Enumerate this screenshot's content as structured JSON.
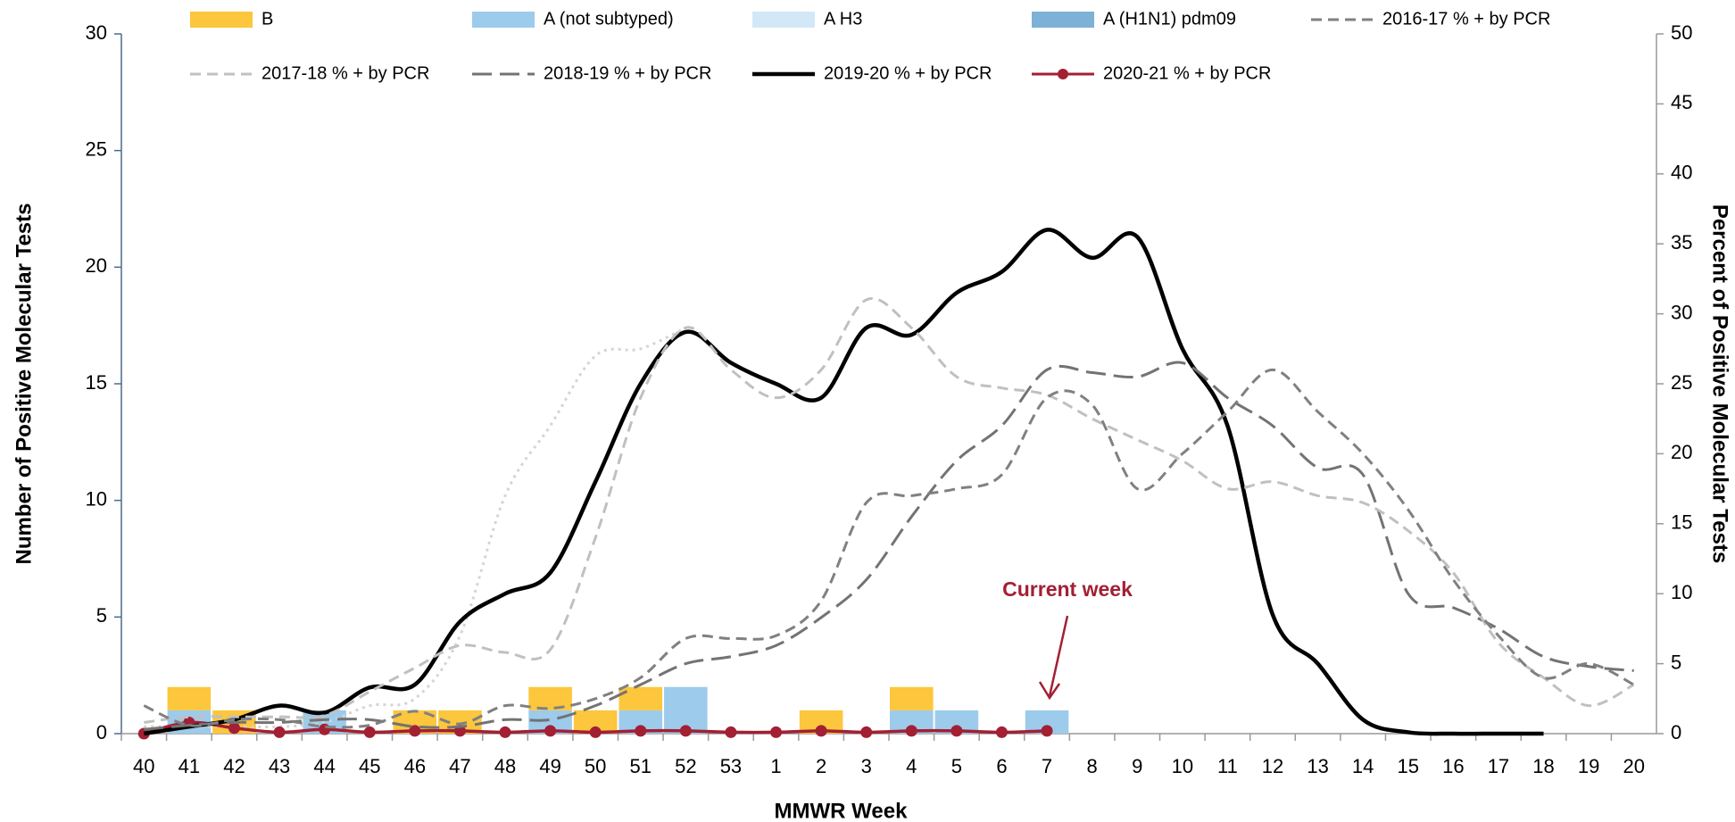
{
  "chart_data": {
    "type": "bar",
    "x_label": "MMWR Week",
    "y_label": "Number of Positive Molecular Tests",
    "y2_label": "Percent of Positive Molecular Tests",
    "annotation": "Current week",
    "categories": [
      "40",
      "41",
      "42",
      "43",
      "44",
      "45",
      "46",
      "47",
      "48",
      "49",
      "50",
      "51",
      "52",
      "53",
      "1",
      "2",
      "3",
      "4",
      "5",
      "6",
      "7",
      "8",
      "9",
      "10",
      "11",
      "12",
      "13",
      "14",
      "15",
      "16",
      "17",
      "18",
      "19",
      "20"
    ],
    "ylim": [
      0,
      30
    ],
    "yticks": [
      0,
      5,
      10,
      15,
      20,
      25,
      30
    ],
    "y2lim": [
      0,
      50
    ],
    "y2ticks": [
      0,
      5,
      10,
      15,
      20,
      25,
      30,
      35,
      40,
      45,
      50
    ],
    "series": [
      {
        "name": "B",
        "type": "bar",
        "color": "#fcc63d",
        "values": [
          0,
          1,
          1,
          0,
          0,
          0,
          1,
          1,
          0,
          1,
          1,
          1,
          0,
          0,
          0,
          1,
          0,
          1,
          0,
          0,
          0,
          0,
          0,
          0,
          0,
          0,
          0,
          0,
          0,
          0,
          0,
          0,
          0,
          0
        ]
      },
      {
        "name": "A (not subtyped)",
        "type": "bar",
        "color": "#9dcbeb",
        "values": [
          0,
          1,
          0,
          0,
          1,
          0,
          0,
          0,
          0,
          1,
          0,
          1,
          2,
          0,
          0,
          0,
          0,
          1,
          1,
          0,
          1,
          0,
          0,
          0,
          0,
          0,
          0,
          0,
          0,
          0,
          0,
          0,
          0,
          0
        ]
      },
      {
        "name": "A H3",
        "type": "bar",
        "color": "#d3e8f7",
        "values": [
          0,
          0,
          0,
          0,
          0,
          0,
          0,
          0,
          0,
          0,
          0,
          0,
          0,
          0,
          0,
          0,
          0,
          0,
          0,
          0,
          0,
          0,
          0,
          0,
          0,
          0,
          0,
          0,
          0,
          0,
          0,
          0,
          0,
          0
        ]
      },
      {
        "name": "A (H1N1) pdm09",
        "type": "bar",
        "color": "#7eb1d6",
        "values": [
          0,
          0,
          0,
          0,
          0,
          0,
          0,
          0,
          0,
          0,
          0,
          0,
          0,
          0,
          0,
          0,
          0,
          0,
          0,
          0,
          0,
          0,
          0,
          0,
          0,
          0,
          0,
          0,
          0,
          0,
          0,
          0,
          0,
          0
        ]
      },
      {
        "name": "2016-17 % + by PCR",
        "type": "line",
        "axis": "y2",
        "color": "#808080",
        "style": "dashed",
        "values": [
          2,
          0.6,
          1,
          1,
          0.5,
          0.6,
          1.6,
          0.7,
          2,
          1.8,
          2.5,
          4,
          6.8,
          6.8,
          7,
          9.5,
          16.5,
          17,
          17.5,
          18.5,
          24,
          23.5,
          17.5,
          20,
          23,
          26,
          23,
          20,
          16,
          11,
          7,
          4,
          5,
          3.5
        ]
      },
      {
        "name": "2017-18 % + by PCR",
        "type": "line",
        "axis": "y2",
        "color": "#c0c0c0",
        "style": "dashed",
        "values": [
          0.8,
          1.2,
          1.2,
          1.2,
          1.3,
          3,
          4.7,
          6.3,
          5.8,
          6,
          14,
          24,
          29,
          26,
          24,
          26,
          31,
          29,
          25.5,
          24.7,
          24.2,
          22.5,
          21,
          19.5,
          17.5,
          18,
          17,
          16.5,
          14.5,
          11.5,
          6.5,
          4,
          2,
          3.5
        ]
      },
      {
        "name": "2018-19 % + by PCR",
        "type": "line",
        "axis": "y2",
        "color": "#737373",
        "style": "long-dashed",
        "values": [
          0.3,
          0.6,
          0.8,
          0.8,
          1,
          1,
          0.5,
          0.5,
          1,
          1,
          2,
          3.5,
          5,
          5.5,
          6.3,
          8.3,
          11,
          15.5,
          19.5,
          22,
          26,
          25.8,
          25.5,
          26.5,
          24,
          22,
          19,
          18.5,
          10,
          9,
          7.5,
          5.5,
          4.8,
          4.5
        ]
      },
      {
        "name": "2019-20 % + by PCR",
        "type": "line",
        "axis": "y2",
        "color": "#000000",
        "style": "solid",
        "values": [
          0,
          0.5,
          1,
          2,
          1.5,
          3.3,
          3.5,
          8,
          10,
          11.5,
          18,
          25,
          28.7,
          26.5,
          25,
          24,
          29,
          28.5,
          31.5,
          33,
          36,
          34,
          35.5,
          27.5,
          22,
          8.5,
          5,
          1,
          0.1,
          0,
          0,
          0,
          null,
          null
        ]
      },
      {
        "name": "2020-21 % + by PCR",
        "type": "line",
        "axis": "y2",
        "color": "#a31f34",
        "style": "solid",
        "marker": true,
        "values": [
          0,
          0.8,
          0.4,
          0.1,
          0.3,
          0.1,
          0.2,
          0.2,
          0.1,
          0.2,
          0.1,
          0.2,
          0.2,
          0.1,
          0.1,
          0.2,
          0.1,
          0.2,
          0.2,
          0.1,
          0.2,
          null,
          null,
          null,
          null,
          null,
          null,
          null,
          null,
          null,
          null,
          null,
          null,
          null
        ]
      },
      {
        "type": "line",
        "axis": "y2",
        "color": "#d4d4d4",
        "style": "dotted",
        "values": [
          0.5,
          0.5,
          0.5,
          0.5,
          0.8,
          2,
          2.5,
          7,
          17,
          22,
          27,
          27.5,
          29,
          null,
          null,
          null,
          null,
          null,
          null,
          null,
          null,
          null,
          null,
          null,
          null,
          null,
          null,
          null,
          null,
          null,
          null,
          null,
          null,
          null
        ]
      }
    ]
  }
}
